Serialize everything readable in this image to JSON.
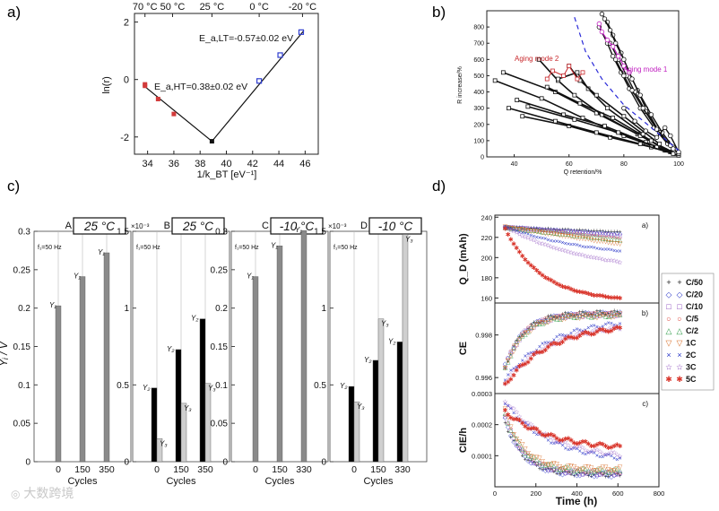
{
  "panel_letters": [
    "a)",
    "b)",
    "c)",
    "d)"
  ],
  "watermark": "大数跨境",
  "chart_data": [
    {
      "id": "a",
      "type": "scatter",
      "title": "",
      "xlabel": "1/k_BT [eV⁻¹]",
      "ylabel": "ln(r)",
      "xlim": [
        33,
        47
      ],
      "ylim": [
        -2.6,
        2.3
      ],
      "xticks": [
        "34",
        "36",
        "38",
        "40",
        "42",
        "44",
        "46"
      ],
      "xtick_values": [
        34,
        36,
        38,
        40,
        42,
        44,
        46
      ],
      "yticks": [
        "-2",
        "0",
        "2"
      ],
      "ytick_values": [
        -2,
        0,
        2
      ],
      "top_ticks": [
        "70 °C",
        "50 °C",
        "25 °C",
        "0 °C",
        "-20 °C"
      ],
      "top_tick_values": [
        33.8,
        35.9,
        38.9,
        42.5,
        45.8
      ],
      "annotations": [
        "E_a,LT=-0.57±0.02 eV",
        "E_a,HT=0.38±0.02 eV"
      ],
      "series": [
        {
          "marker": "red-square",
          "color": "#d23a3a",
          "points": [
            [
              33.8,
              -0.17
            ],
            [
              33.8,
              -0.22
            ],
            [
              34.8,
              -0.68
            ],
            [
              36.0,
              -1.2
            ]
          ]
        },
        {
          "marker": "blue-square",
          "color": "#2f3ecf",
          "points": [
            [
              42.5,
              -0.05
            ],
            [
              44.1,
              0.85
            ],
            [
              45.7,
              1.65
            ]
          ]
        }
      ],
      "fit_line": [
        [
          33.8,
          -0.25
        ],
        [
          38.9,
          -2.15
        ],
        [
          45.9,
          1.7
        ]
      ]
    },
    {
      "id": "b",
      "type": "line",
      "title": "",
      "xlabel": "Q retention/%",
      "ylabel": "R increase/%",
      "xlim": [
        30,
        100
      ],
      "ylim": [
        0,
        900
      ],
      "xticks": [
        "40",
        "60",
        "80",
        "100"
      ],
      "xtick_values": [
        40,
        60,
        80,
        100
      ],
      "yticks": [
        "0",
        "100",
        "200",
        "300",
        "400",
        "500",
        "600",
        "700",
        "800"
      ],
      "ytick_values": [
        0,
        100,
        200,
        300,
        400,
        500,
        600,
        700,
        800
      ],
      "annotations": [
        "Aging mode 2",
        "Aging mode 1"
      ],
      "mode2_series": [
        [
          [
            33,
            470
          ],
          [
            50,
            360
          ],
          [
            65,
            240
          ],
          [
            80,
            130
          ],
          [
            95,
            40
          ],
          [
            100,
            10
          ]
        ],
        [
          [
            36,
            520
          ],
          [
            55,
            400
          ],
          [
            70,
            270
          ],
          [
            85,
            140
          ],
          [
            97,
            30
          ]
        ],
        [
          [
            41,
            350
          ],
          [
            58,
            260
          ],
          [
            73,
            190
          ],
          [
            88,
            90
          ],
          [
            100,
            10
          ]
        ],
        [
          [
            45,
            310
          ],
          [
            62,
            230
          ],
          [
            78,
            150
          ],
          [
            92,
            60
          ]
        ],
        [
          [
            49,
            600
          ],
          [
            56,
            470
          ],
          [
            62,
            380
          ],
          [
            72,
            260
          ],
          [
            86,
            130
          ],
          [
            99,
            20
          ]
        ],
        [
          [
            52,
            430
          ],
          [
            64,
            330
          ],
          [
            76,
            240
          ],
          [
            90,
            100
          ]
        ],
        [
          [
            56,
            480
          ],
          [
            63,
            520
          ],
          [
            67,
            420
          ],
          [
            74,
            300
          ],
          [
            87,
            140
          ]
        ],
        [
          [
            60,
            560
          ],
          [
            64,
            470
          ],
          [
            70,
            380
          ],
          [
            80,
            250
          ],
          [
            93,
            80
          ]
        ],
        [
          [
            43,
            250
          ],
          [
            60,
            190
          ],
          [
            75,
            120
          ],
          [
            90,
            60
          ],
          [
            100,
            10
          ]
        ],
        [
          [
            38,
            300
          ],
          [
            55,
            220
          ],
          [
            70,
            150
          ],
          [
            86,
            80
          ],
          [
            98,
            20
          ]
        ]
      ],
      "mode2_red": [
        [
          52,
          480
        ],
        [
          54,
          530
        ],
        [
          58,
          500
        ],
        [
          60,
          560
        ],
        [
          63,
          480
        ],
        [
          65,
          520
        ]
      ],
      "mode1_series": [
        [
          [
            72,
            880
          ],
          [
            74,
            830
          ],
          [
            76,
            750
          ],
          [
            79,
            640
          ],
          [
            82,
            520
          ],
          [
            85,
            410
          ],
          [
            88,
            300
          ],
          [
            92,
            180
          ],
          [
            96,
            90
          ],
          [
            100,
            20
          ]
        ],
        [
          [
            73,
            850
          ],
          [
            75,
            780
          ],
          [
            77,
            700
          ],
          [
            80,
            600
          ],
          [
            83,
            480
          ],
          [
            86,
            380
          ],
          [
            90,
            260
          ],
          [
            94,
            150
          ],
          [
            98,
            60
          ]
        ],
        [
          [
            71,
            800
          ],
          [
            74,
            700
          ],
          [
            76,
            620
          ],
          [
            79,
            520
          ],
          [
            82,
            420
          ],
          [
            86,
            300
          ],
          [
            91,
            180
          ],
          [
            96,
            80
          ]
        ],
        [
          [
            75,
            700
          ],
          [
            78,
            600
          ],
          [
            81,
            500
          ],
          [
            84,
            400
          ],
          [
            88,
            280
          ],
          [
            93,
            150
          ],
          [
            98,
            50
          ]
        ],
        [
          [
            77,
            600
          ],
          [
            80,
            500
          ],
          [
            83,
            410
          ],
          [
            87,
            300
          ],
          [
            92,
            170
          ],
          [
            97,
            70
          ]
        ],
        [
          [
            80,
            300
          ],
          [
            84,
            220
          ],
          [
            88,
            160
          ],
          [
            92,
            120
          ],
          [
            95,
            180
          ],
          [
            97,
            130
          ],
          [
            100,
            30
          ]
        ]
      ],
      "mode1_magenta": [
        [
          71,
          820
        ],
        [
          72,
          770
        ],
        [
          74,
          720
        ],
        [
          76,
          680
        ],
        [
          78,
          620
        ],
        [
          80,
          560
        ],
        [
          82,
          520
        ]
      ],
      "divider": [
        [
          62,
          860
        ],
        [
          66,
          650
        ],
        [
          72,
          480
        ],
        [
          80,
          320
        ],
        [
          90,
          180
        ],
        [
          100,
          40
        ]
      ]
    },
    {
      "id": "c",
      "type": "bar",
      "ylabel": "Yᵢ / V",
      "xlabel": "Cycles",
      "freq_label": "f₁=50 Hz",
      "subplots": [
        {
          "letter": "A",
          "temp": "25 °C",
          "multiplier": "",
          "ylim": [
            0,
            0.3
          ],
          "yticks": [
            "0",
            "0.05",
            "0.1",
            "0.15",
            "0.2",
            "0.25",
            "0.3"
          ],
          "ytick_values": [
            0,
            0.05,
            0.1,
            0.15,
            0.2,
            0.25,
            0.3
          ],
          "categories": [
            "0",
            "150",
            "350"
          ],
          "series": [
            {
              "label": "Y₁",
              "color": "#8a8a8a",
              "values": [
                0.203,
                0.241,
                0.272
              ]
            }
          ]
        },
        {
          "letter": "B",
          "temp": "25 °C",
          "multiplier": "×10⁻³",
          "ylim": [
            0,
            1.5
          ],
          "yticks": [
            "0",
            "0.5",
            "1",
            "1.5"
          ],
          "ytick_values": [
            0,
            0.5,
            1,
            1.5
          ],
          "categories": [
            "0",
            "150",
            "350"
          ],
          "series": [
            {
              "label": "Y₂",
              "color": "#000000",
              "values": [
                0.48,
                0.73,
                0.93
              ]
            },
            {
              "label": "Y₃",
              "color": "#cfcfcf",
              "values": [
                0.15,
                0.38,
                0.51
              ]
            }
          ]
        },
        {
          "letter": "C",
          "temp": "-10 °C",
          "multiplier": "",
          "ylim": [
            0,
            0.3
          ],
          "yticks": [
            "0",
            "0.05",
            "0.1",
            "0.15",
            "0.2",
            "0.25",
            "0.3"
          ],
          "ytick_values": [
            0,
            0.05,
            0.1,
            0.15,
            0.2,
            0.25,
            0.3
          ],
          "categories": [
            "0",
            "150",
            "330"
          ],
          "series": [
            {
              "label": "Y₁",
              "color": "#8a8a8a",
              "values": [
                0.241,
                0.281,
                0.301
              ]
            }
          ]
        },
        {
          "letter": "D",
          "temp": "-10 °C",
          "multiplier": "×10⁻³",
          "ylim": [
            0,
            1.5
          ],
          "yticks": [
            "0",
            "0.5",
            "1",
            "1.5"
          ],
          "ytick_values": [
            0,
            0.5,
            1,
            1.5
          ],
          "categories": [
            "0",
            "150",
            "330"
          ],
          "series": [
            {
              "label": "Y₂",
              "color": "#000000",
              "values": [
                0.49,
                0.66,
                0.78
              ]
            },
            {
              "label": "Y₃",
              "color": "#cfcfcf",
              "values": [
                0.39,
                0.93,
                1.48
              ]
            }
          ]
        }
      ]
    },
    {
      "id": "d",
      "type": "scatter",
      "xlabel": "Time (h)",
      "xlim": [
        0,
        800
      ],
      "xticks": [
        "0",
        "200",
        "400",
        "600",
        "800"
      ],
      "xtick_values": [
        0,
        200,
        400,
        600,
        800
      ],
      "legend": [
        {
          "label": "C/50",
          "symbol": "+",
          "color": "#222222"
        },
        {
          "label": "C/20",
          "symbol": "◇",
          "color": "#2c39c9"
        },
        {
          "label": "C/10",
          "symbol": "□",
          "color": "#7d35b5"
        },
        {
          "label": "C/5",
          "symbol": "○",
          "color": "#d9362c"
        },
        {
          "label": "C/2",
          "symbol": "△",
          "color": "#2c9a45"
        },
        {
          "label": "1C",
          "symbol": "▽",
          "color": "#d9712c"
        },
        {
          "label": "2C",
          "symbol": "×",
          "color": "#2c39c9"
        },
        {
          "label": "3C",
          "symbol": "☆",
          "color": "#7d35b5"
        },
        {
          "label": "5C",
          "symbol": "✱",
          "color": "#d9362c"
        }
      ],
      "subplots": [
        {
          "letter": "a)",
          "ylabel": "Q_D (mAh)",
          "ylim": [
            155,
            242
          ],
          "yticks": [
            "160",
            "180",
            "200",
            "220",
            "240"
          ],
          "ytick_values": [
            160,
            180,
            200,
            220,
            240
          ],
          "curves": [
            [
              231,
              226
            ],
            [
              231,
              224
            ],
            [
              231,
              222
            ],
            [
              231,
              220
            ],
            [
              231,
              218
            ],
            [
              231,
              214
            ],
            [
              231,
              207
            ],
            [
              231,
              196
            ],
            [
              229,
              160
            ]
          ],
          "end_times": [
            600,
            600,
            600,
            600,
            600,
            600,
            600,
            600,
            600
          ]
        },
        {
          "letter": "b)",
          "ylabel": "CE",
          "ylim": [
            0.99525,
            0.9995
          ],
          "yticks": [
            "0.996",
            "0.998"
          ],
          "ytick_values": [
            0.996,
            0.998
          ],
          "curves": [
            [
              0.9962,
              0.9991
            ],
            [
              0.9963,
              0.99905
            ],
            [
              0.9962,
              0.999
            ],
            [
              0.9963,
              0.99905
            ],
            [
              0.9962,
              0.999
            ],
            [
              0.9961,
              0.99895
            ],
            [
              0.9958,
              0.9988
            ],
            [
              0.9957,
              0.9986
            ],
            [
              0.99555,
              0.99855
            ]
          ]
        },
        {
          "letter": "c)",
          "ylabel": "CIE/h",
          "ylim": [
            0,
            0.0003
          ],
          "yticks": [
            "0.0003",
            "0.0002",
            "0.0001"
          ],
          "ytick_values": [
            0.0003,
            0.0002,
            0.0001
          ],
          "curves": [
            [
              0.00023,
              4e-05
            ],
            [
              0.00024,
              4e-05
            ],
            [
              0.00025,
              4.5e-05
            ],
            [
              0.00026,
              5e-05
            ],
            [
              0.00026,
              5.5e-05
            ],
            [
              0.00027,
              6e-05
            ],
            [
              0.00028,
              8e-05
            ],
            [
              0.00029,
              9e-05
            ],
            [
              0.00025,
              0.00012
            ]
          ]
        }
      ]
    }
  ]
}
